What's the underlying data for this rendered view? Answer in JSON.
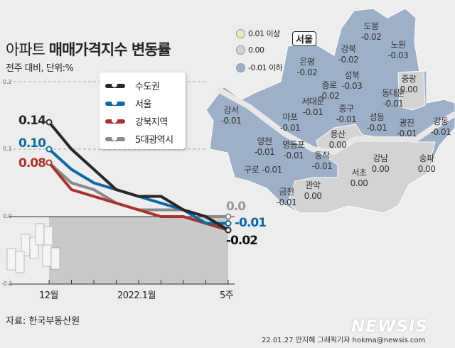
{
  "header": {
    "title_prefix": "아파트",
    "title_main": "매매가격지수 변동률",
    "subtitle": "전주 대비, 단위:%"
  },
  "chart_data": {
    "type": "line",
    "title": "아파트 매매가격지수 변동률",
    "subtitle": "전주 대비, 단위:%",
    "categories": [
      "12월",
      "",
      "",
      "",
      "2022.1월",
      "",
      "",
      "",
      "5주"
    ],
    "ylim": [
      -0.1,
      0.2
    ],
    "yticks": [
      "0.2",
      "0.1",
      "0.0",
      "-0.1"
    ],
    "grid": true,
    "legend_placement": "top-center",
    "series": [
      {
        "name": "수도권",
        "color": "#2b2623",
        "values": [
          0.14,
          0.1,
          0.07,
          0.04,
          0.03,
          0.03,
          0.01,
          0.0,
          -0.02
        ],
        "start_label": "0.14",
        "end_label": "-0.02"
      },
      {
        "name": "서울",
        "color": "#0b6aa2",
        "values": [
          0.1,
          0.07,
          0.05,
          0.04,
          0.03,
          0.02,
          0.01,
          -0.01,
          -0.01
        ],
        "start_label": "0.10",
        "end_label": "-0.01"
      },
      {
        "name": "강북지역",
        "color": "#a8322f",
        "values": [
          0.08,
          0.04,
          0.03,
          0.02,
          0.01,
          0.0,
          0.0,
          -0.01,
          -0.02
        ],
        "start_label": "0.08",
        "end_label": ""
      },
      {
        "name": "5대광역시",
        "color": "#8a8a8a",
        "values": [
          0.08,
          0.05,
          0.04,
          0.02,
          0.01,
          0.01,
          0.01,
          0.0,
          0.0
        ],
        "start_label": "",
        "end_label": "0.0"
      }
    ]
  },
  "map": {
    "badge": "서울",
    "legend": [
      {
        "label": "0.01 이상",
        "color": "#efe6b8"
      },
      {
        "label": "0.00",
        "color": "#d3d3d3"
      },
      {
        "label": "-0.01 이하",
        "color": "#9db0c8"
      }
    ],
    "districts": [
      {
        "name": "도봉",
        "value": "-0.02"
      },
      {
        "name": "노원",
        "value": "-0.03"
      },
      {
        "name": "강북",
        "value": "-0.02"
      },
      {
        "name": "은평",
        "value": "-0.02"
      },
      {
        "name": "성북",
        "value": "-0.03"
      },
      {
        "name": "종로",
        "value": "-0.02"
      },
      {
        "name": "중랑",
        "value": "0.00"
      },
      {
        "name": "동대문",
        "value": "-0.01"
      },
      {
        "name": "서대문",
        "value": "-0.01"
      },
      {
        "name": "중구",
        "value": "-0.01"
      },
      {
        "name": "강서",
        "value": "-0.01"
      },
      {
        "name": "마포",
        "value": "-0.01"
      },
      {
        "name": "성동",
        "value": "-0.01"
      },
      {
        "name": "광진",
        "value": "-0.01"
      },
      {
        "name": "강동",
        "value": "-0.01"
      },
      {
        "name": "용산",
        "value": "0.00"
      },
      {
        "name": "양천",
        "value": "-0.01"
      },
      {
        "name": "영등포",
        "value": "-0.01"
      },
      {
        "name": "동작",
        "value": "-0.01"
      },
      {
        "name": "구로",
        "value": "-0.01"
      },
      {
        "name": "강남",
        "value": "0.00"
      },
      {
        "name": "송파",
        "value": "0.00"
      },
      {
        "name": "서초",
        "value": "0.00"
      },
      {
        "name": "관악",
        "value": "0.00"
      },
      {
        "name": "금천",
        "value": "-0.01"
      }
    ]
  },
  "footer": {
    "source": "자료: 한국부동산원",
    "credit": "22.01.27 안지혜 그래픽기자 hokma@newsis.com",
    "logo": "NEWSIS"
  }
}
